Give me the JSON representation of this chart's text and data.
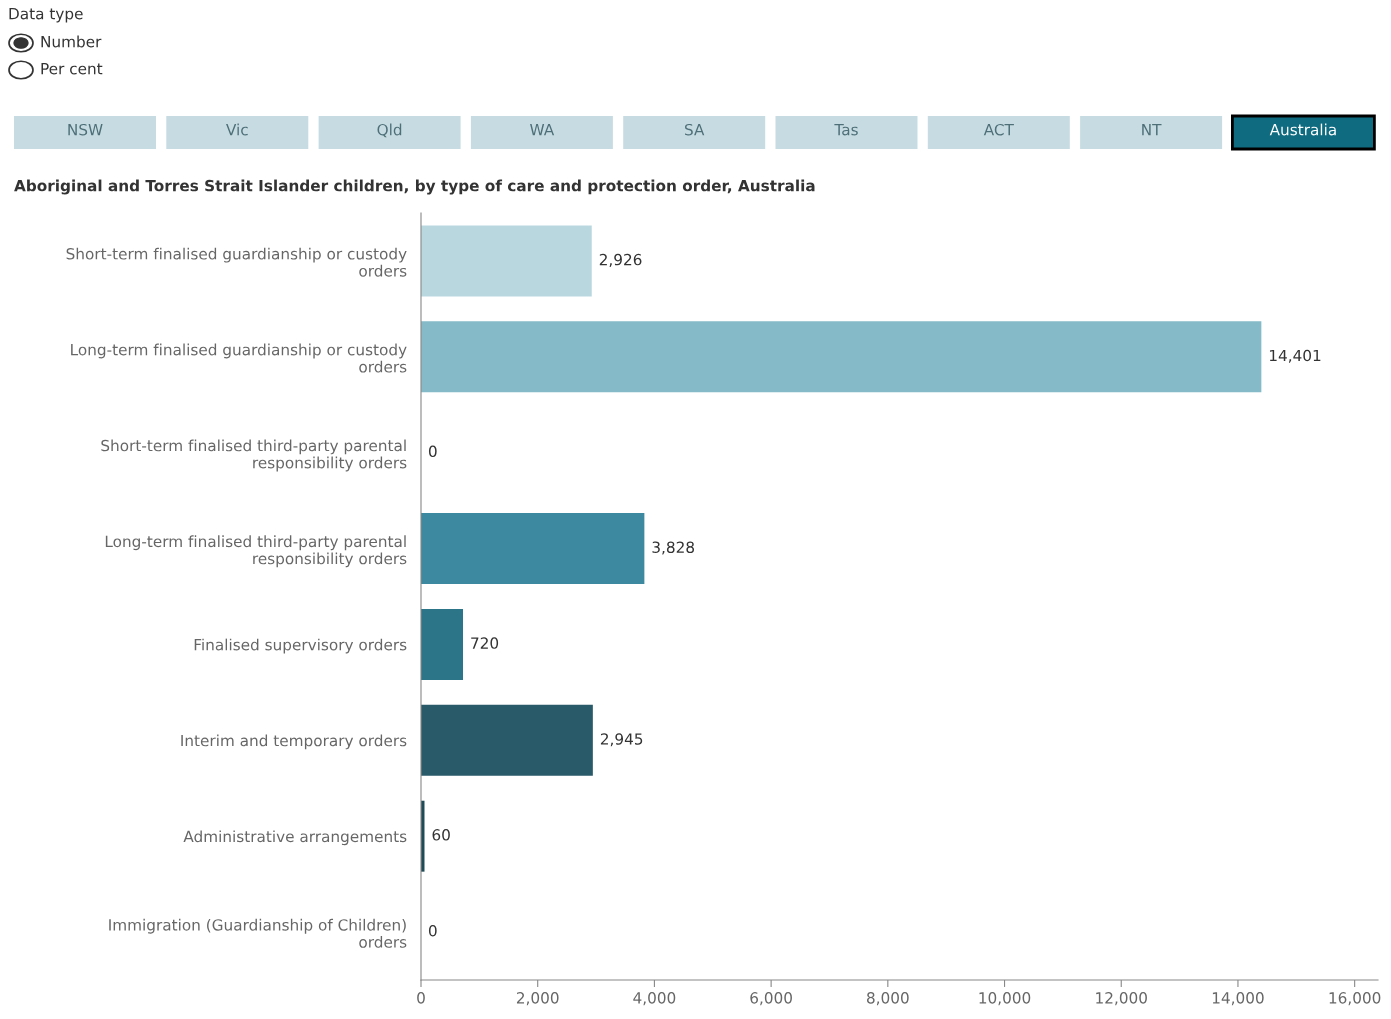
{
  "chart_data": {
    "type": "bar",
    "orientation": "horizontal",
    "title": "Aboriginal and Torres Strait Islander children, by type of care and protection order, Australia",
    "categories": [
      "Short-term finalised guardianship or custody\norders",
      "Long-term finalised guardianship or custody\norders",
      "Short-term finalised third-party parental\nresponsibility orders",
      "Long-term finalised third-party parental\nresponsibility orders",
      "Finalised supervisory orders",
      "Interim and temporary orders",
      "Administrative arrangements",
      "Immigration (Guardianship of Children)\norders"
    ],
    "values": [
      2926,
      14401,
      0,
      3828,
      720,
      2945,
      60,
      0
    ],
    "colors": [
      "#b9d7df",
      "#85bac8",
      "#5fa2b5",
      "#3d8aa0",
      "#2c7488",
      "#295a6a",
      "#1f4a57",
      "#1b3f4a"
    ],
    "value_labels": [
      "2,926",
      "14,401",
      "0",
      "3,828",
      "720",
      "2,945",
      "60",
      "0"
    ],
    "xlim": [
      0,
      16400
    ],
    "xticks": [
      0,
      {
        "value": 2000,
        "label": "2,000"
      },
      {
        "value": 4000,
        "label": "4,000"
      },
      {
        "value": 6000,
        "label": "6,000"
      },
      {
        "value": 8000,
        "label": "8,000"
      },
      {
        "value": 10000,
        "label": "10,000"
      },
      {
        "value": 12000,
        "label": "12,000"
      },
      {
        "value": 14000,
        "label": "14,000"
      },
      {
        "value": 16000,
        "label": "16,000"
      }
    ],
    "grid": false,
    "legend": false,
    "annotations": [
      "Data type",
      "Number",
      "Per cent",
      "NSW",
      "Vic",
      "Qld",
      "WA",
      "SA",
      "Tas",
      "ACT",
      "NT",
      "Australia"
    ]
  }
}
